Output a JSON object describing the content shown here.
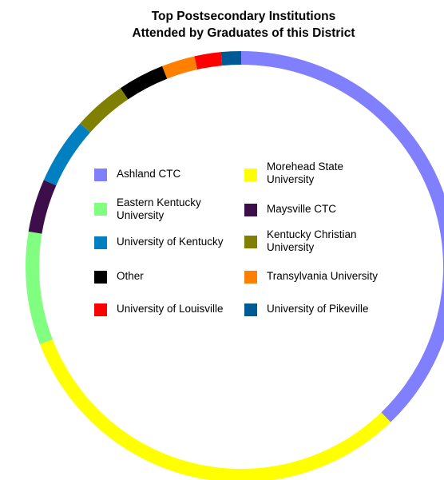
{
  "chart_data": {
    "type": "pie",
    "style": "donut",
    "title_lines": [
      "Top Postsecondary Institutions",
      "Attended by Graduates of this District"
    ],
    "legend_placement": "inside-center",
    "slices": [
      {
        "label": "Ashland CTC",
        "value": 38.0,
        "color": "#8080ff"
      },
      {
        "label": "Morehead State University",
        "value": 31.5,
        "color": "#ffff00"
      },
      {
        "label": "Eastern Kentucky University",
        "value": 8.5,
        "color": "#80ff80"
      },
      {
        "label": "Maysville CTC",
        "value": 4.0,
        "color": "#3d0f4a"
      },
      {
        "label": "University of Kentucky",
        "value": 5.0,
        "color": "#0080c0"
      },
      {
        "label": "Kentucky Christian University",
        "value": 4.0,
        "color": "#808000"
      },
      {
        "label": "Other",
        "value": 3.5,
        "color": "#000000"
      },
      {
        "label": "Transylvania University",
        "value": 2.5,
        "color": "#ff8000"
      },
      {
        "label": "University of Louisville",
        "value": 2.0,
        "color": "#ff0000"
      },
      {
        "label": "University of Pikeville",
        "value": 1.5,
        "color": "#005a96"
      }
    ]
  },
  "legend": [
    {
      "label": "Ashland CTC",
      "color": "#8080ff"
    },
    {
      "label": "Morehead State University",
      "color": "#ffff00"
    },
    {
      "label": "Eastern Kentucky University",
      "color": "#80ff80"
    },
    {
      "label": "Maysville CTC",
      "color": "#3d0f4a"
    },
    {
      "label": "University of Kentucky",
      "color": "#0080c0"
    },
    {
      "label": "Kentucky Christian University",
      "color": "#808000"
    },
    {
      "label": "Other",
      "color": "#000000"
    },
    {
      "label": "Transylvania University",
      "color": "#ff8000"
    },
    {
      "label": "University of Louisville",
      "color": "#ff0000"
    },
    {
      "label": "University of Pikeville",
      "color": "#005a96"
    }
  ]
}
